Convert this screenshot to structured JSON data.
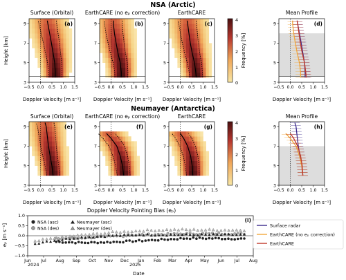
{
  "figure": {
    "row1_title": "NSA (Arctic)",
    "row2_title": "Neumayer (Antarctica)",
    "colorbar_label": "Frequency [%]",
    "colorbar_ticks": [
      "4",
      "3",
      "2",
      "1",
      "0"
    ],
    "xlabel": "Doppler Velocity [m s⁻¹]",
    "ylabel": "Height [km]",
    "x_ticks": [
      "−0.5",
      "0.0",
      "0.5",
      "1.0",
      "1.5"
    ],
    "y_ticks": [
      "9",
      "7",
      "5",
      "3"
    ],
    "row1_panel_titles": [
      "Surface (Orbital)",
      "EarthCARE (no eₚ correction)",
      "EarthCARE",
      "Mean Profile"
    ],
    "row2_panel_titles": [
      "Surface (Orbital)",
      "EarthCARE (no eₚ correction)",
      "EarthCARE",
      "Mean Profile"
    ],
    "row1_panel_letters": [
      "(a)",
      "(b)",
      "(c)",
      "(d)"
    ],
    "row2_panel_letters": [
      "(e)",
      "(f)",
      "(g)",
      "(h)"
    ],
    "legend_bias": [
      "NSA (asc)",
      "NSA (des)",
      "Neumayer (asc)",
      "Neumayer (des)"
    ],
    "legend_profile": [
      "Surface radar",
      "EarthCARE (no eₚ correction)",
      "EarthCARE"
    ],
    "bias_title": "Doppler Velocity Pointing Bias (eₚ)",
    "bias_letter": "(i)",
    "bias_ylabel": "eₚ [m s⁻¹]",
    "bias_xlabel": "Date",
    "bias_y_ticks": [
      "1.0",
      "0.5",
      "0.0",
      "−0.5",
      "−1.0"
    ],
    "bias_x_ticks": [
      "Jun",
      "Jul",
      "Aug",
      "Sep",
      "Oct",
      "Nov",
      "Dec",
      "Jan",
      "Feb",
      "Mar",
      "Apr",
      "May",
      "Jun",
      "Jul",
      "Aug"
    ],
    "year_2024": "2024",
    "year_2025": "2025"
  },
  "colors": {
    "surface_radar": "#3b2a8c",
    "earthcare_no_corr": "#f2a93b",
    "earthcare": "#c0392b",
    "shade": "#dddddd",
    "heat_low": "#f8e7a6",
    "heat_high": "#4a1010"
  },
  "chart_data": [
    {
      "type": "heatmap",
      "panel": "a",
      "title": "Surface (Orbital)",
      "xlim": [
        -0.5,
        1.5
      ],
      "ylim": [
        3,
        9.5
      ],
      "mean_profile": {
        "height": [
          3.5,
          4,
          5,
          6,
          7,
          8,
          9,
          9.3
        ],
        "velocity": [
          0.65,
          0.65,
          0.62,
          0.55,
          0.48,
          0.4,
          0.32,
          0.3
        ]
      }
    },
    {
      "type": "heatmap",
      "panel": "b",
      "title": "EarthCARE (no eₚ correction)",
      "xlim": [
        -0.5,
        1.5
      ],
      "ylim": [
        3,
        9.5
      ],
      "mean_profile": {
        "height": [
          3.5,
          4,
          5,
          6,
          7,
          8,
          9,
          9.3
        ],
        "velocity": [
          0.45,
          0.45,
          0.4,
          0.3,
          0.22,
          0.15,
          0.1,
          0.1
        ]
      }
    },
    {
      "type": "heatmap",
      "panel": "c",
      "title": "EarthCARE",
      "xlim": [
        -0.5,
        1.5
      ],
      "ylim": [
        3,
        9.5
      ],
      "mean_profile": {
        "height": [
          3.5,
          4,
          5,
          6,
          7,
          8,
          9,
          9.3
        ],
        "velocity": [
          0.7,
          0.68,
          0.62,
          0.52,
          0.44,
          0.38,
          0.32,
          0.3
        ]
      }
    },
    {
      "type": "line",
      "panel": "d",
      "title": "Mean Profile",
      "xlim": [
        -0.5,
        1.5
      ],
      "ylim": [
        3,
        9.5
      ],
      "shaded_height_range": [
        3.6,
        8.0
      ],
      "series": [
        {
          "name": "Surface radar",
          "height": [
            3.5,
            4,
            5,
            6,
            7,
            8,
            9,
            9.3
          ],
          "velocity": [
            0.65,
            0.65,
            0.62,
            0.55,
            0.48,
            0.4,
            0.32,
            0.3
          ]
        },
        {
          "name": "EarthCARE (no eₚ correction)",
          "height": [
            3.5,
            4,
            5,
            6,
            7,
            8,
            9,
            9.3
          ],
          "velocity": [
            0.45,
            0.45,
            0.4,
            0.3,
            0.22,
            0.15,
            0.1,
            0.1
          ]
        },
        {
          "name": "EarthCARE",
          "height": [
            3.5,
            4,
            5,
            6,
            7,
            8,
            9,
            9.3
          ],
          "velocity": [
            0.7,
            0.68,
            0.62,
            0.52,
            0.44,
            0.38,
            0.32,
            0.3
          ]
        }
      ]
    },
    {
      "type": "heatmap",
      "panel": "e",
      "title": "Surface (Orbital)",
      "xlim": [
        -0.5,
        1.5
      ],
      "ylim": [
        3,
        9.5
      ],
      "mean_profile": {
        "height": [
          4,
          5,
          6,
          7,
          8,
          9,
          9.4
        ],
        "velocity": [
          0.55,
          0.5,
          0.42,
          0.35,
          0.3,
          0.25,
          0.2
        ]
      }
    },
    {
      "type": "heatmap",
      "panel": "f",
      "title": "EarthCARE (no eₚ correction)",
      "xlim": [
        -0.5,
        1.5
      ],
      "ylim": [
        3,
        9.5
      ],
      "mean_profile": {
        "height": [
          4,
          5,
          6,
          7,
          7.8,
          8.3
        ],
        "velocity": [
          0.55,
          0.5,
          0.4,
          0.25,
          0.0,
          -0.2
        ]
      }
    },
    {
      "type": "heatmap",
      "panel": "g",
      "title": "EarthCARE",
      "xlim": [
        -0.5,
        1.5
      ],
      "ylim": [
        3,
        9.5
      ],
      "mean_profile": {
        "height": [
          4,
          5,
          6,
          7,
          7.8,
          8.3
        ],
        "velocity": [
          0.55,
          0.52,
          0.45,
          0.32,
          0.15,
          0.0
        ]
      }
    },
    {
      "type": "line",
      "panel": "h",
      "title": "Mean Profile",
      "xlim": [
        -0.5,
        1.5
      ],
      "ylim": [
        3,
        9.5
      ],
      "shaded_height_range": [
        3.0,
        7.0
      ],
      "series": [
        {
          "name": "Surface radar",
          "height": [
            4,
            5,
            6,
            7,
            8,
            9,
            9.4
          ],
          "velocity": [
            0.55,
            0.5,
            0.42,
            0.35,
            0.3,
            0.25,
            0.2
          ]
        },
        {
          "name": "EarthCARE (no eₚ correction)",
          "height": [
            4,
            5,
            6,
            7,
            7.8,
            8.3
          ],
          "velocity": [
            0.55,
            0.5,
            0.4,
            0.25,
            0.0,
            -0.2
          ]
        },
        {
          "name": "EarthCARE",
          "height": [
            4,
            5,
            6,
            7,
            7.8,
            8.3
          ],
          "velocity": [
            0.55,
            0.52,
            0.45,
            0.32,
            0.15,
            0.0
          ]
        }
      ]
    },
    {
      "type": "scatter",
      "panel": "i",
      "title": "Doppler Velocity Pointing Bias (eₚ)",
      "ylim": [
        -1.0,
        1.0
      ],
      "xlim": [
        "2024-06-01",
        "2025-08-01"
      ],
      "series": [
        {
          "name": "NSA (asc)",
          "trend": {
            "date": [
              "2024-07-25",
              "2024-09-15",
              "2024-11-01",
              "2025-01-01",
              "2025-04-01",
              "2025-07-15"
            ],
            "value": [
              -0.3,
              -0.35,
              -0.32,
              -0.25,
              -0.12,
              -0.15
            ]
          }
        },
        {
          "name": "NSA (des)",
          "trend": {
            "date": [
              "2024-07-25",
              "2024-09-15",
              "2024-11-01",
              "2025-01-01",
              "2025-04-01",
              "2025-07-15"
            ],
            "value": [
              -0.15,
              -0.1,
              -0.05,
              0.05,
              0.1,
              0.1
            ]
          }
        },
        {
          "name": "Neumayer (asc)",
          "trend": {
            "date": [
              "2024-06-15",
              "2024-07-01",
              "2024-09-01",
              "2024-11-01",
              "2025-01-01",
              "2025-04-01",
              "2025-07-15"
            ],
            "value": [
              -0.4,
              -0.3,
              -0.1,
              0.0,
              0.05,
              0.05,
              0.05
            ]
          }
        },
        {
          "name": "Neumayer (des)",
          "trend": {
            "date": [
              "2024-06-15",
              "2024-07-01",
              "2024-09-01",
              "2024-11-01",
              "2025-01-01",
              "2025-03-01",
              "2025-07-15"
            ],
            "value": [
              -0.3,
              -0.2,
              0.0,
              0.15,
              0.25,
              0.3,
              0.28
            ]
          }
        }
      ]
    }
  ]
}
